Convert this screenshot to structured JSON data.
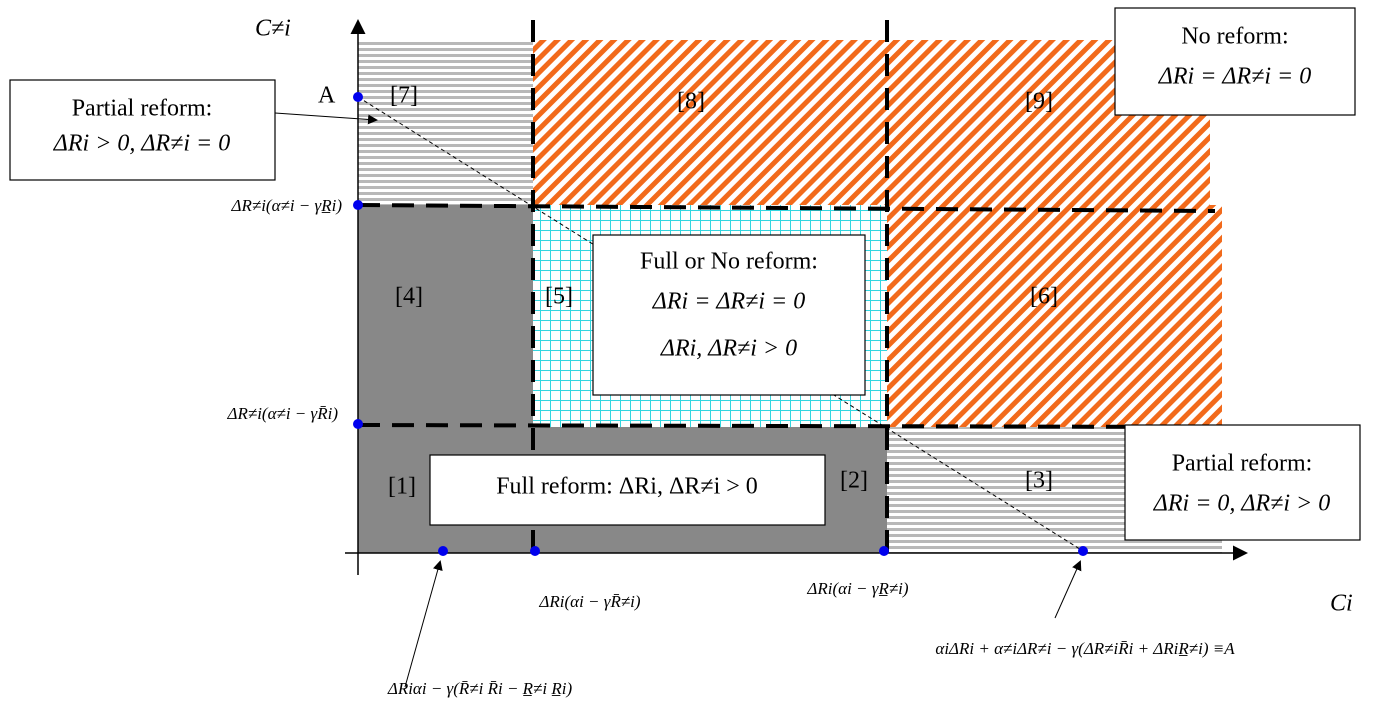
{
  "axes": {
    "y_label": "C≠i",
    "x_label": "Ci"
  },
  "point_a": "A",
  "regions": [
    "[1]",
    "[2]",
    "[3]",
    "[4]",
    "[5]",
    "[6]",
    "[7]",
    "[8]",
    "[9]"
  ],
  "boxes": {
    "partial_left": [
      "Partial reform:",
      "ΔRi > 0, ΔR≠i = 0"
    ],
    "no_reform": [
      "No reform:",
      "ΔRi = ΔR≠i = 0"
    ],
    "full_or_no": [
      "Full or No reform:",
      "ΔRi = ΔR≠i = 0",
      "ΔRi, ΔR≠i > 0"
    ],
    "full": [
      "Full reform:  ΔRi, ΔR≠i > 0"
    ],
    "partial_right": [
      "Partial reform:",
      "ΔRi = 0, ΔR≠i > 0"
    ]
  },
  "y_axis_labels": [
    "ΔR≠i(α≠i − γR̲i)",
    "ΔR≠i(α≠i − γR̄i)"
  ],
  "x_axis_labels": [
    "ΔRiαi − γ(R̄≠i R̄i − R̲≠i R̲i)",
    "ΔRi(αi − γR̄≠i)",
    "ΔRi(αi − γR̲≠i)",
    "αiΔRi + α≠iΔR≠i − γ(ΔR≠iR̄i + ΔRiR̲≠i) ≡A"
  ]
}
